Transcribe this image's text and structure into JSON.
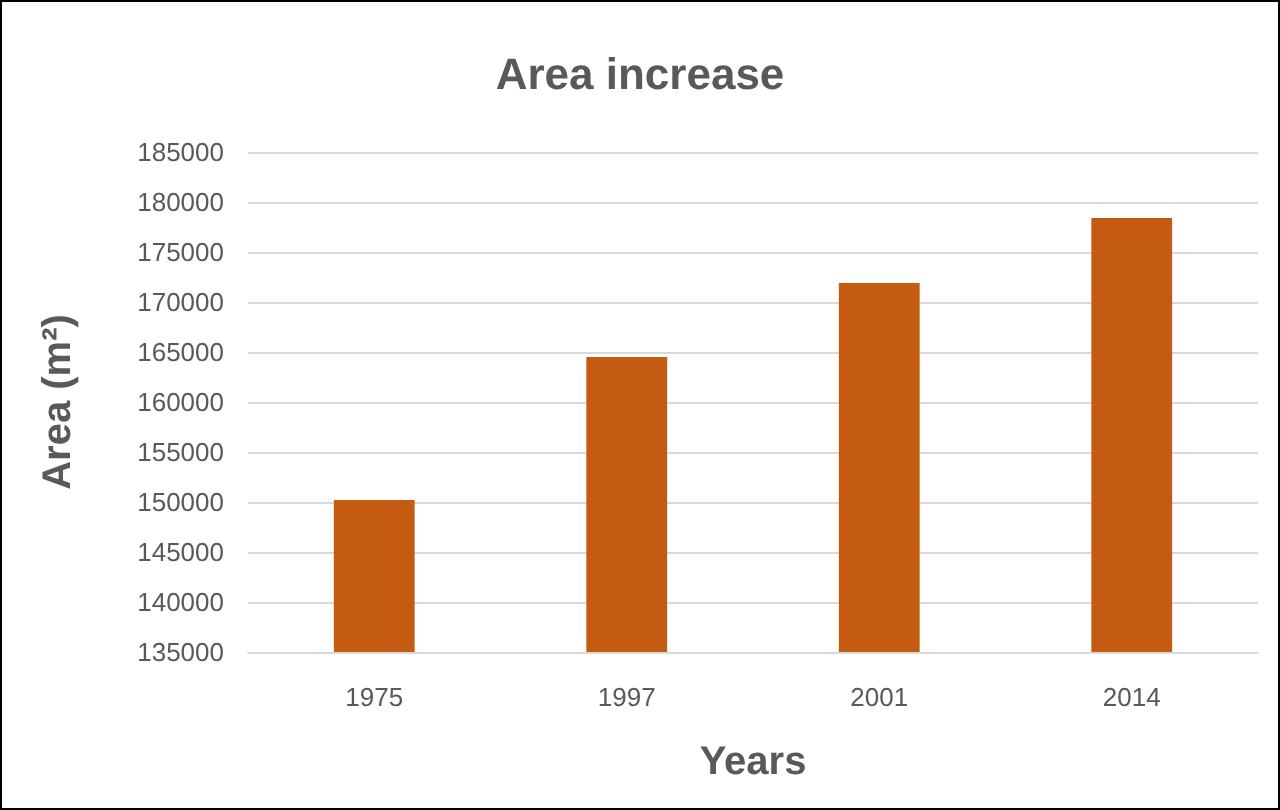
{
  "chart_data": {
    "type": "bar",
    "title": "Area increase",
    "xlabel": "Years",
    "ylabel": "Area (m²)",
    "categories": [
      "1975",
      "1997",
      "2001",
      "2014"
    ],
    "values": [
      150200,
      164500,
      171900,
      178400
    ],
    "color": "#c55a11",
    "ylim": [
      135000,
      185000
    ],
    "yticks": [
      135000,
      140000,
      145000,
      150000,
      155000,
      160000,
      165000,
      170000,
      175000,
      180000,
      185000
    ],
    "grid": "y"
  }
}
